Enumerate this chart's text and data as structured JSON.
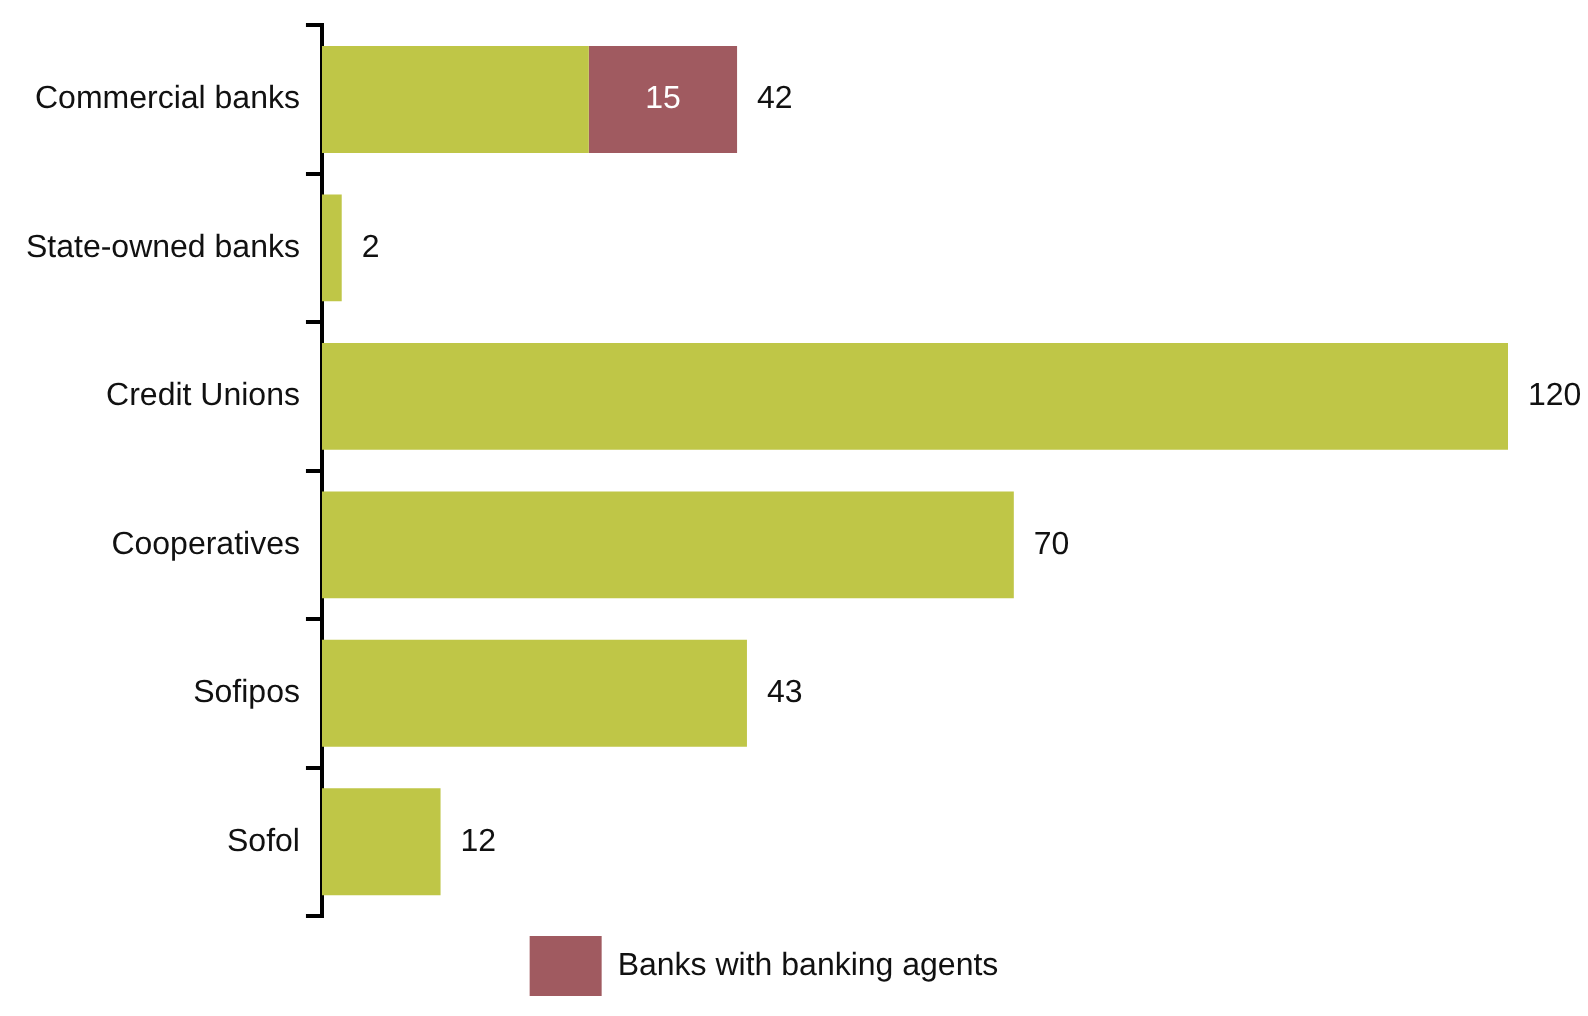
{
  "chart_data": {
    "type": "bar",
    "orientation": "horizontal",
    "stacked": true,
    "categories": [
      "Commercial banks",
      "State-owned banks",
      "Credit Unions",
      "Cooperatives",
      "Sofipos",
      "Sofol"
    ],
    "series": [
      {
        "color": "#bfc647",
        "values": [
          27,
          2,
          120,
          70,
          43,
          12
        ]
      },
      {
        "name": "Banks with banking agents",
        "color": "#a05a60",
        "values": [
          15,
          null,
          null,
          null,
          null,
          null
        ],
        "value_labels": [
          "15",
          null,
          null,
          null,
          null,
          null
        ]
      }
    ],
    "totals": [
      "42",
      "2",
      "120",
      "70",
      "43",
      "12"
    ],
    "tick_labels": "y",
    "grid": false,
    "legend": "bottom"
  }
}
